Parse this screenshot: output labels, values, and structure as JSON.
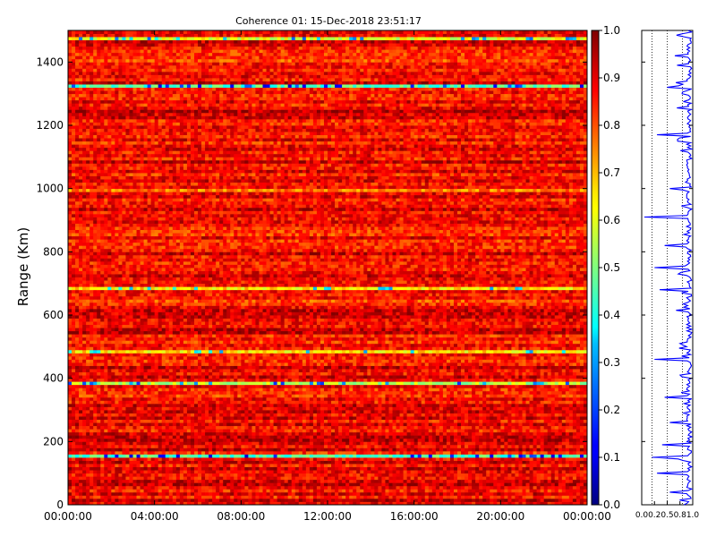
{
  "chart_data": [
    {
      "type": "heatmap",
      "title": "Coherence 01: 15-Dec-2018 23:51:17",
      "xlabel": "",
      "ylabel": "Range (Km)",
      "xlim": [
        "00:00:00",
        "24:00:00"
      ],
      "ylim": [
        0,
        1500
      ],
      "x_tick_labels": [
        "00:00:00",
        "04:00:00",
        "08:00:00",
        "12:00:00",
        "16:00:00",
        "20:00:00",
        "00:00:00"
      ],
      "y_tick_values": [
        0,
        200,
        400,
        600,
        800,
        1000,
        1200,
        1400
      ],
      "colormap": "jet",
      "clim": [
        0.0,
        1.0
      ],
      "colorbar_ticks": [
        "0.0",
        "0.1",
        "0.2",
        "0.3",
        "0.4",
        "0.5",
        "0.6",
        "0.7",
        "0.8",
        "0.9",
        "1.0"
      ],
      "note_rows": [
        {
          "range": 1475,
          "coherence": 0.45
        },
        {
          "range": 1405,
          "coherence": 0.65
        },
        {
          "range": 1320,
          "coherence": 0.3
        },
        {
          "range": 1240,
          "coherence": 0.8
        },
        {
          "range": 1075,
          "coherence": 0.7
        },
        {
          "range": 995,
          "coherence": 0.6
        },
        {
          "range": 890,
          "coherence": 0.75
        },
        {
          "range": 680,
          "coherence": 0.5
        },
        {
          "range": 640,
          "coherence": 0.65
        },
        {
          "range": 480,
          "coherence": 0.5
        },
        {
          "range": 380,
          "coherence": 0.4
        },
        {
          "range": 150,
          "coherence": 0.3
        }
      ]
    },
    {
      "type": "line",
      "title": "",
      "xlabel": "",
      "ylabel": "",
      "x_tick_labels": [
        "0.0",
        "0.2",
        "0.5",
        "0.8",
        "1.0"
      ],
      "xlim": [
        0.0,
        1.0
      ],
      "ylim": [
        0,
        1500
      ],
      "grid": "dotted vertical",
      "color": "#0000ff",
      "profile": [
        {
          "range": 10,
          "coherence": 0.92
        },
        {
          "range": 40,
          "coherence": 0.55
        },
        {
          "range": 100,
          "coherence": 0.3
        },
        {
          "range": 150,
          "coherence": 0.2
        },
        {
          "range": 190,
          "coherence": 0.4
        },
        {
          "range": 260,
          "coherence": 0.55
        },
        {
          "range": 340,
          "coherence": 0.45
        },
        {
          "range": 460,
          "coherence": 0.25
        },
        {
          "range": 680,
          "coherence": 0.35
        },
        {
          "range": 750,
          "coherence": 0.25
        },
        {
          "range": 820,
          "coherence": 0.45
        },
        {
          "range": 910,
          "coherence": 0.05
        },
        {
          "range": 1000,
          "coherence": 0.55
        },
        {
          "range": 1170,
          "coherence": 0.3
        },
        {
          "range": 1320,
          "coherence": 0.5
        },
        {
          "range": 1420,
          "coherence": 0.65
        }
      ]
    }
  ]
}
